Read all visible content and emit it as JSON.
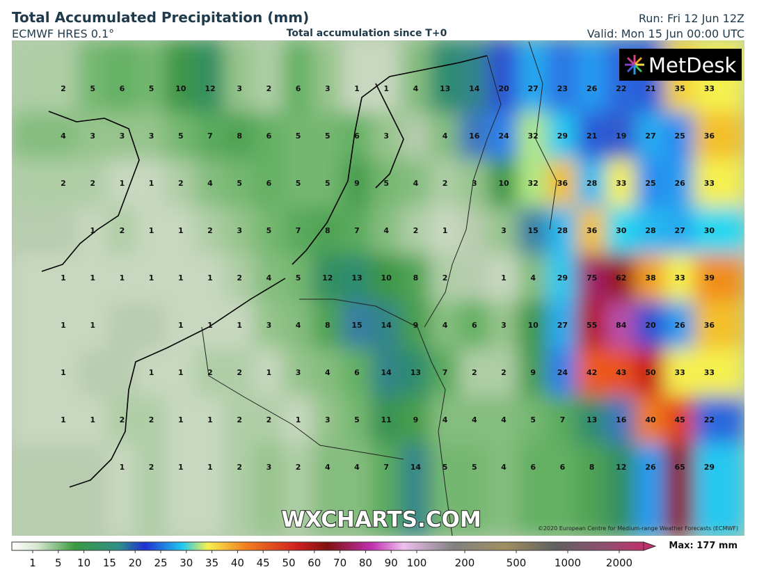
{
  "header": {
    "title": "Total Accumulated Precipitation (mm)",
    "model": "ECMWF HRES 0.1°",
    "subtitle": "Total accumulation since T+0",
    "run": "Run: Fri 12 Jun 12Z",
    "valid": "Valid: Mon 15 Jun 00:00 UTC"
  },
  "logo": "MetDesk",
  "watermark": "WXCHARTS.COM",
  "copyright": "©2020 European Centre for Medium-range Weather Forecasts (ECMWF)",
  "max_label": "Max: 177 mm",
  "grid": {
    "rows": [
      [
        2,
        5,
        6,
        5,
        10,
        12,
        3,
        2,
        6,
        3,
        1,
        1,
        4,
        13,
        14,
        20,
        27,
        23,
        26,
        22,
        21,
        35,
        33
      ],
      [
        4,
        3,
        3,
        3,
        5,
        7,
        8,
        6,
        5,
        5,
        6,
        3,
        null,
        4,
        16,
        24,
        32,
        29,
        21,
        19,
        27,
        25,
        36
      ],
      [
        2,
        2,
        1,
        1,
        2,
        4,
        5,
        6,
        5,
        5,
        9,
        5,
        4,
        2,
        3,
        10,
        32,
        36,
        28,
        33,
        25,
        26,
        33
      ],
      [
        null,
        1,
        2,
        1,
        1,
        2,
        3,
        5,
        7,
        8,
        7,
        4,
        2,
        1,
        null,
        3,
        15,
        28,
        36,
        30,
        28,
        27,
        30
      ],
      [
        1,
        1,
        1,
        1,
        1,
        1,
        2,
        4,
        5,
        12,
        13,
        10,
        8,
        2,
        null,
        1,
        4,
        29,
        75,
        62,
        38,
        33,
        39
      ],
      [
        1,
        1,
        null,
        null,
        1,
        1,
        1,
        3,
        4,
        8,
        15,
        14,
        9,
        4,
        6,
        3,
        10,
        27,
        55,
        84,
        20,
        26,
        36
      ],
      [
        1,
        null,
        null,
        1,
        1,
        2,
        2,
        1,
        3,
        4,
        6,
        14,
        13,
        7,
        2,
        2,
        9,
        24,
        42,
        43,
        50,
        33,
        33
      ],
      [
        1,
        1,
        2,
        2,
        1,
        1,
        2,
        2,
        1,
        3,
        5,
        11,
        9,
        4,
        4,
        4,
        5,
        7,
        13,
        16,
        40,
        45,
        22
      ],
      [
        null,
        null,
        1,
        2,
        1,
        1,
        2,
        3,
        2,
        4,
        4,
        7,
        14,
        5,
        5,
        4,
        6,
        6,
        8,
        12,
        26,
        65,
        29
      ]
    ]
  },
  "colorbar": {
    "ticks": [
      1,
      5,
      10,
      15,
      20,
      25,
      30,
      35,
      40,
      45,
      50,
      60,
      70,
      80,
      90,
      100,
      200,
      500,
      1000,
      2000
    ]
  }
}
